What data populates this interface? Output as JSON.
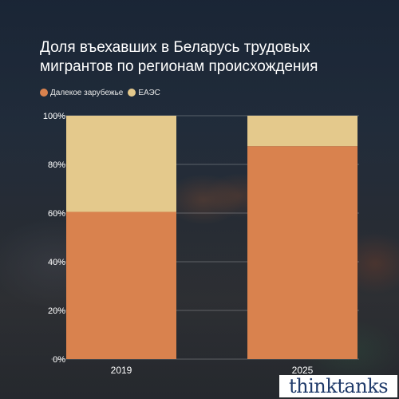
{
  "title_line1": "Доля въехавших в Беларусь трудовых",
  "title_line2": "мигрантов по регионам происхождения",
  "legend": [
    {
      "label": "Далекое зарубежье",
      "color": "#d9824e"
    },
    {
      "label": "ЕАЭС",
      "color": "#e4c98c"
    }
  ],
  "watermark": "thinktanks",
  "chart_data": {
    "type": "bar",
    "stacked": true,
    "categories": [
      "2019",
      "2025"
    ],
    "series": [
      {
        "name": "Далекое зарубежье",
        "values": [
          60.5,
          87.5
        ],
        "color": "#d9824e"
      },
      {
        "name": "ЕАЭС",
        "values": [
          39.5,
          12.5
        ],
        "color": "#e4c98c"
      }
    ],
    "ylim": [
      0,
      100
    ],
    "yticks": [
      "0%",
      "20%",
      "40%",
      "60%",
      "80%",
      "100%"
    ],
    "ytick_values": [
      0,
      20,
      40,
      60,
      80,
      100
    ],
    "grid": true,
    "legend_position": "top-left"
  }
}
